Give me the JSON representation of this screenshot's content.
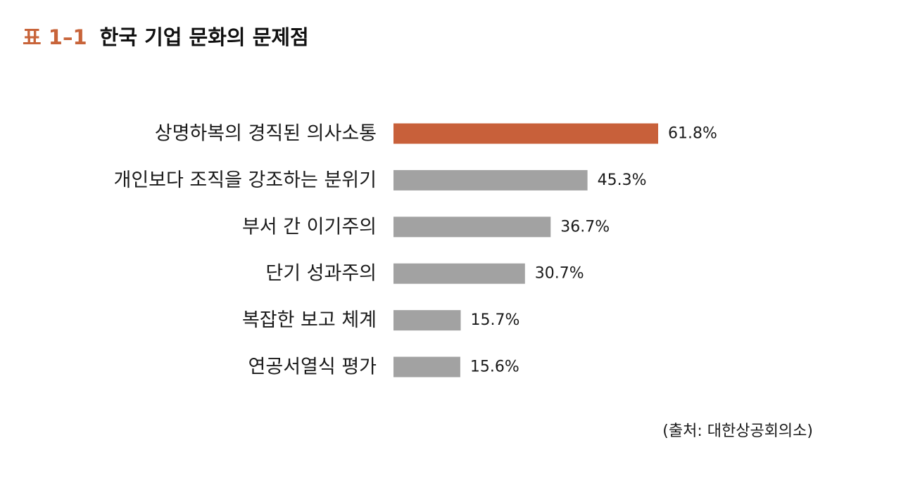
{
  "header": {
    "label": "표 1–1",
    "title": "한국 기업 문화의 문제점"
  },
  "colors": {
    "highlight": "#c8603a",
    "bar": "#a2a2a2",
    "label_accent": "#c8643a"
  },
  "chart_data": {
    "type": "bar",
    "orientation": "horizontal",
    "categories": [
      "상명하복의 경직된 의사소통",
      "개인보다 조직을 강조하는 분위기",
      "부서 간 이기주의",
      "단기 성과주의",
      "복잡한 보고 체계",
      "연공서열식 평가"
    ],
    "values": [
      61.8,
      45.3,
      36.7,
      30.7,
      15.7,
      15.6
    ],
    "value_labels": [
      "61.8%",
      "45.3%",
      "36.7%",
      "30.7%",
      "15.7%",
      "15.6%"
    ],
    "unit": "%",
    "highlight_index": 0,
    "xlim": [
      0,
      61.8
    ],
    "grid": false,
    "legend": "none"
  },
  "source": "(출처: 대한상공회의소)"
}
